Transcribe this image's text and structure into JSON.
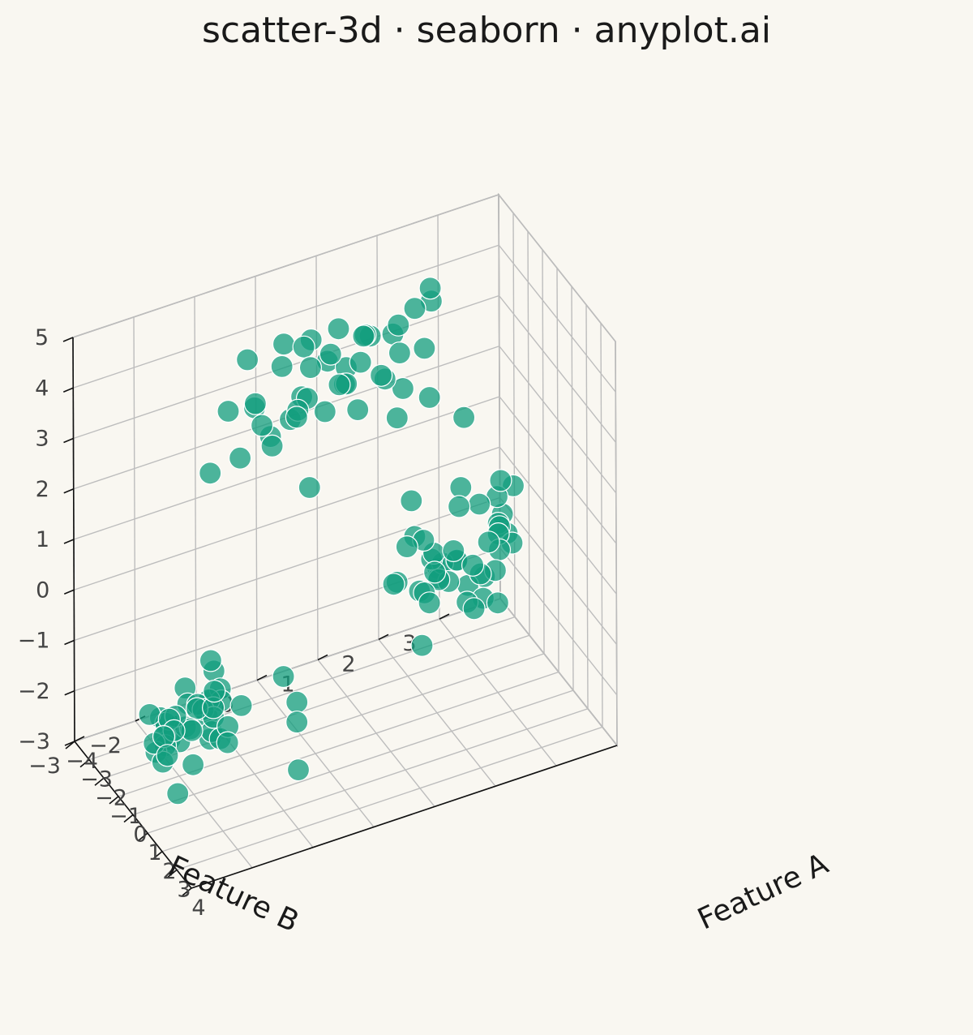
{
  "chart_data": {
    "type": "scatter",
    "title": "scatter-3d · seaborn · anyplot.ai",
    "xlabel": "Feature A",
    "ylabel": "Feature B",
    "zlabel": "",
    "xlim": [
      -4,
      4
    ],
    "ylim": [
      -3,
      4
    ],
    "zlim": [
      -3,
      5
    ],
    "xticks": [
      "4",
      "3",
      "2",
      "1",
      "0",
      "−1",
      "−2",
      "−3",
      "−4"
    ],
    "xticks_values": [
      4,
      3,
      2,
      1,
      0,
      -1,
      -2,
      -3,
      -4
    ],
    "yticks": [
      "−3",
      "−2",
      "−1",
      "0",
      "1",
      "2",
      "3"
    ],
    "yticks_values": [
      -3,
      -2,
      -1,
      0,
      1,
      2,
      3
    ],
    "zticks": [
      "−3",
      "−2",
      "−1",
      "0",
      "1",
      "2",
      "3",
      "4",
      "5"
    ],
    "zticks_values": [
      -3,
      -2,
      -1,
      0,
      1,
      2,
      3,
      4,
      5
    ],
    "grid": true,
    "marker_color": "#119E7D",
    "background": "#F9F7F1",
    "points": [
      [
        -2.37,
        1.41,
        3.86
      ],
      [
        -1.64,
        0.0,
        3.02
      ],
      [
        -2.38,
        1.07,
        3.02
      ],
      [
        -1.13,
        1.73,
        3.12
      ],
      [
        -1.26,
        -0.39,
        2.79
      ],
      [
        -1.45,
        0.08,
        3.24
      ],
      [
        -2.7,
        0.6,
        3.97
      ],
      [
        -2.6,
        2.03,
        3.17
      ],
      [
        -1.06,
        2.15,
        2.8
      ],
      [
        -1.82,
        -0.09,
        4.04
      ],
      [
        -1.35,
        1.04,
        2.9
      ],
      [
        -2.43,
        2.24,
        4.03
      ],
      [
        -1.41,
        0.28,
        4.02
      ],
      [
        -2.68,
        1.17,
        3.2
      ],
      [
        -2.66,
        2.45,
        3.07
      ],
      [
        -1.72,
        0.3,
        3.29
      ],
      [
        -0.83,
        0.12,
        1.92
      ],
      [
        -1.32,
        0.03,
        3.17
      ],
      [
        -2.96,
        0.93,
        3.32
      ],
      [
        -2.65,
        1.04,
        4.03
      ],
      [
        -2.36,
        1.49,
        3.81
      ],
      [
        -1.63,
        -1.02,
        3.6
      ],
      [
        -2.6,
        -1.09,
        2.05
      ],
      [
        -2.33,
        -0.42,
        3.17
      ],
      [
        -1.06,
        1.42,
        3.46
      ],
      [
        -2.73,
        1.95,
        3.53
      ],
      [
        -1.91,
        1.82,
        2.22
      ],
      [
        -2.34,
        -0.66,
        2.27
      ],
      [
        -1.98,
        1.24,
        3.53
      ],
      [
        -1.97,
        1.86,
        4.02
      ],
      [
        -2.21,
        1.06,
        3.09
      ],
      [
        -2.12,
        -0.35,
        2.87
      ],
      [
        -1.86,
        0.86,
        3.28
      ],
      [
        -0.9,
        1.32,
        3.63
      ],
      [
        -1.56,
        1.19,
        4.22
      ],
      [
        -1.65,
        0.23,
        4.36
      ],
      [
        -2.59,
        2.55,
        3.99
      ],
      [
        -2.0,
        -0.24,
        2.65
      ],
      [
        -2.44,
        -0.51,
        4.12
      ],
      [
        -2.53,
        2.52,
        4.28
      ],
      [
        -1.76,
        0.6,
        2.89
      ],
      [
        -2.11,
        -0.46,
        3.35
      ],
      [
        -2.02,
        -0.01,
        4.38
      ],
      [
        -2.15,
        0.79,
        3.81
      ],
      [
        -2.52,
        0.4,
        2.99
      ],
      [
        1.88,
        -0.75,
        -1.39
      ],
      [
        0.91,
        -2.48,
        -2.46
      ],
      [
        0.29,
        -2.5,
        -1.92
      ],
      [
        -0.18,
        -1.63,
        -1.69
      ],
      [
        -0.13,
        -2.29,
        -1.67
      ],
      [
        -1.16,
        -2.18,
        -1.94
      ],
      [
        -0.38,
        -1.85,
        -1.5
      ],
      [
        -0.28,
        -2.33,
        -1.48
      ],
      [
        -0.64,
        -1.56,
        -0.76
      ],
      [
        -0.6,
        -1.59,
        -2.29
      ],
      [
        -0.98,
        -1.54,
        -1.99
      ],
      [
        -1.03,
        -2.14,
        -2.23
      ],
      [
        -0.46,
        -1.9,
        -2.62
      ],
      [
        -0.3,
        -2.22,
        -1.47
      ],
      [
        0.23,
        -1.49,
        -1.78
      ],
      [
        -0.57,
        -2.51,
        -1.99
      ],
      [
        -0.37,
        -1.47,
        -1.26
      ],
      [
        -0.51,
        -1.81,
        -1.48
      ],
      [
        -0.26,
        -1.99,
        -1.8
      ],
      [
        -0.14,
        -1.64,
        -1.48
      ],
      [
        -0.6,
        -1.54,
        -1.52
      ],
      [
        -0.68,
        -2.3,
        -2.16
      ],
      [
        -0.72,
        -2.3,
        -1.98
      ],
      [
        -0.34,
        -1.76,
        -1.54
      ],
      [
        -0.75,
        -2.05,
        -2.21
      ],
      [
        -0.79,
        -2.43,
        -2.28
      ],
      [
        0.15,
        -1.25,
        -1.49
      ],
      [
        0.03,
        -1.57,
        -2.06
      ],
      [
        -1.05,
        -2.47,
        -1.61
      ],
      [
        -0.43,
        -1.64,
        -1.43
      ],
      [
        -0.21,
        -0.47,
        -1.36
      ],
      [
        -0.42,
        -1.6,
        -2.07
      ],
      [
        -1.56,
        -2.17,
        -1.98
      ],
      [
        -1.07,
        -1.88,
        -1.33
      ],
      [
        -1.1,
        -1.4,
        -1.2
      ],
      [
        0.17,
        -2.53,
        -1.58
      ],
      [
        -0.89,
        -1.88,
        -1.58
      ],
      [
        -0.3,
        -1.47,
        -1.47
      ],
      [
        0.33,
        -1.52,
        -2.05
      ],
      [
        -0.53,
        -2.38,
        -2.4
      ],
      [
        1.8,
        -0.71,
        -2.38
      ],
      [
        -0.35,
        -2.05,
        -1.77
      ],
      [
        -0.12,
        -2.0,
        -1.78
      ],
      [
        0.01,
        -1.66,
        -1.09
      ],
      [
        0.5,
        -0.42,
        -1.63
      ],
      [
        2.31,
        1.95,
        0.05
      ],
      [
        2.61,
        2.62,
        1.06
      ],
      [
        2.46,
        2.38,
        0.56
      ],
      [
        1.57,
        1.95,
        0.6
      ],
      [
        1.6,
        1.54,
        0.81
      ],
      [
        1.79,
        1.91,
        0.71
      ],
      [
        0.77,
        1.46,
        0.99
      ],
      [
        2.27,
        1.43,
        0.84
      ],
      [
        2.0,
        1.48,
        1.1
      ],
      [
        1.83,
        2.35,
        0.22
      ],
      [
        1.43,
        1.76,
        0.58
      ],
      [
        1.8,
        2.59,
        1.17
      ],
      [
        2.67,
        1.96,
        0.91
      ],
      [
        1.92,
        2.58,
        1.15
      ],
      [
        2.09,
        1.7,
        0.48
      ],
      [
        1.95,
        1.05,
        1.38
      ],
      [
        2.5,
        2.44,
        0.96
      ],
      [
        2.87,
        2.32,
        0.09
      ],
      [
        1.37,
        0.97,
        0.46
      ],
      [
        2.93,
        1.06,
        -0.22
      ],
      [
        1.72,
        2.59,
        1.67
      ],
      [
        1.62,
        2.88,
        1.73
      ],
      [
        1.93,
        1.33,
        1.39
      ],
      [
        1.07,
        2.15,
        1.79
      ],
      [
        3.12,
        1.87,
        0.25
      ],
      [
        2.43,
        2.48,
        2.29
      ],
      [
        1.95,
        2.05,
        0.21
      ],
      [
        1.1,
        1.33,
        1.87
      ],
      [
        2.48,
        2.13,
        0.6
      ],
      [
        2.31,
        1.73,
        1.16
      ],
      [
        2.14,
        1.29,
        0.44
      ],
      [
        2.23,
        1.35,
        0.25
      ],
      [
        2.47,
        2.43,
        1.27
      ],
      [
        2.13,
        1.53,
        0.6
      ],
      [
        1.31,
        1.04,
        0.45
      ],
      [
        1.95,
        1.91,
        1.83
      ],
      [
        1.93,
        2.0,
        3.55
      ],
      [
        1.51,
        1.36,
        0.22
      ],
      [
        2.34,
        2.3,
        1.11
      ],
      [
        1.9,
        2.71,
        0.96
      ],
      [
        1.35,
        1.71,
        0.28
      ],
      [
        1.37,
        2.76,
        1.13
      ],
      [
        1.19,
        1.74,
        0.4
      ],
      [
        2.33,
        2.21,
        0.03
      ],
      [
        2.05,
        2.22,
        1.79
      ]
    ]
  }
}
